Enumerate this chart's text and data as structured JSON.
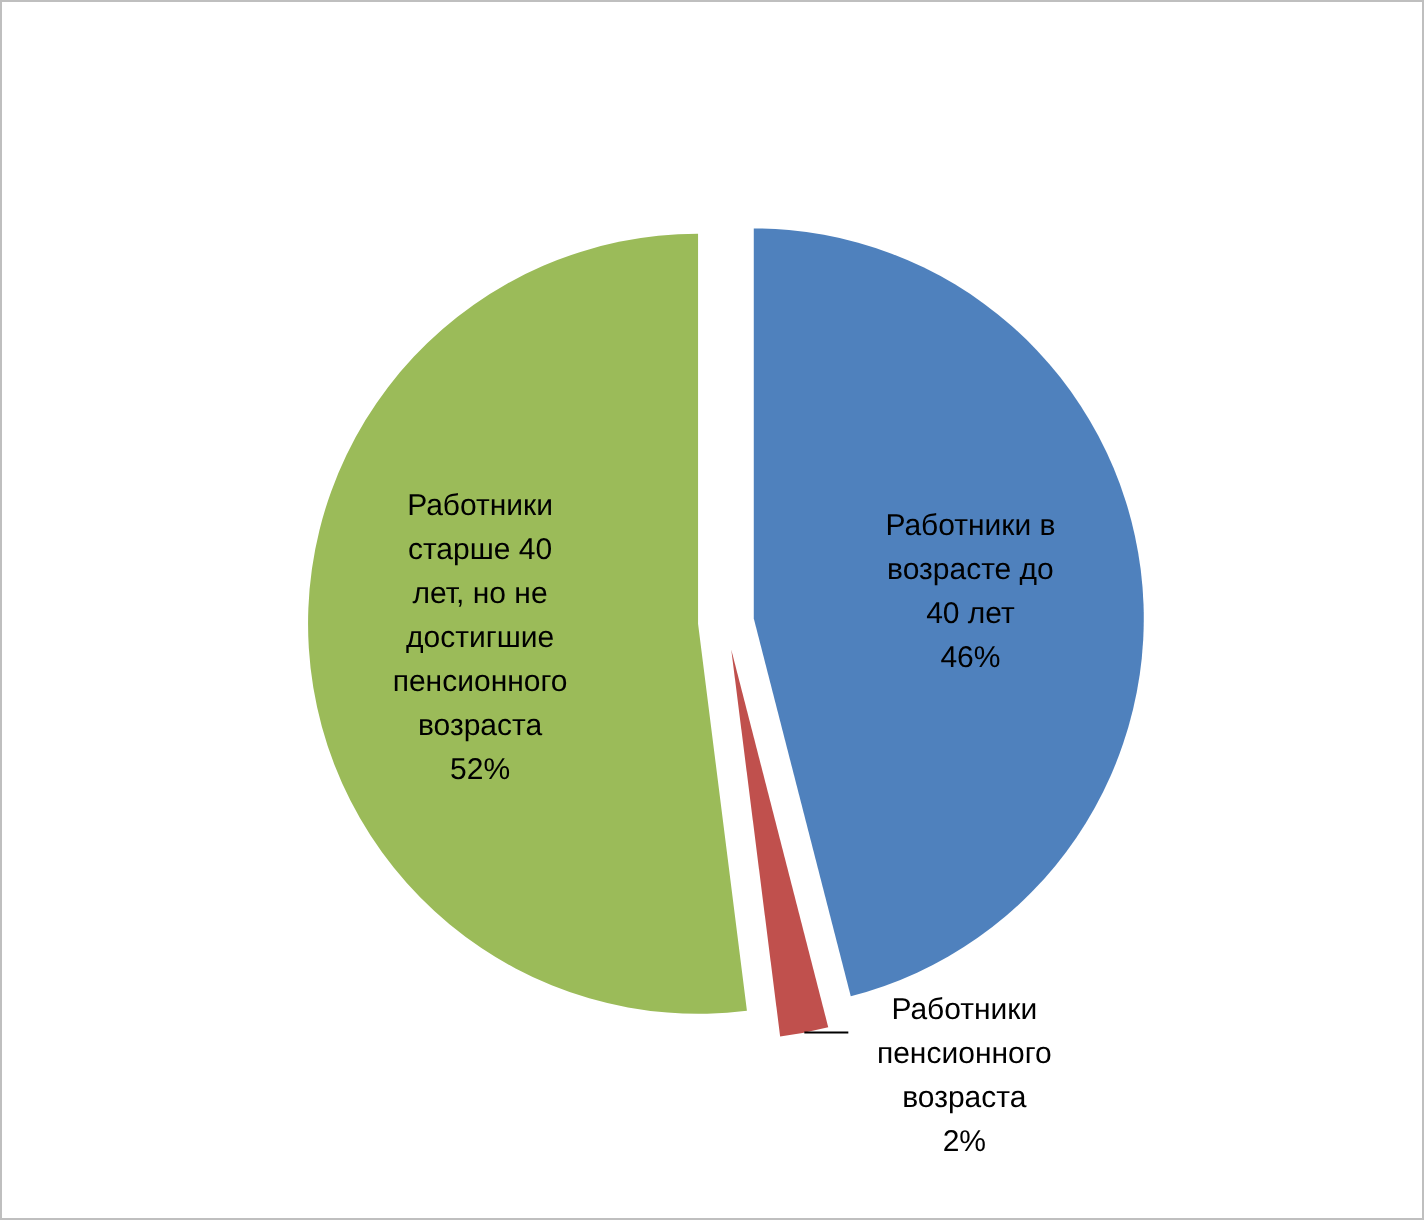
{
  "chart_data": {
    "type": "pie",
    "categories": [
      "Работники в возрасте до 40 лет",
      "Работники пенсионного возраста",
      "Работники старше 40 лет, но не достигшие пенсионного возраста"
    ],
    "values": [
      46,
      2,
      52
    ],
    "colors": [
      "#4f81bd",
      "#c0504d",
      "#9bbb59"
    ],
    "value_labels": [
      "46%",
      "2%",
      "52%"
    ],
    "legend": false
  }
}
